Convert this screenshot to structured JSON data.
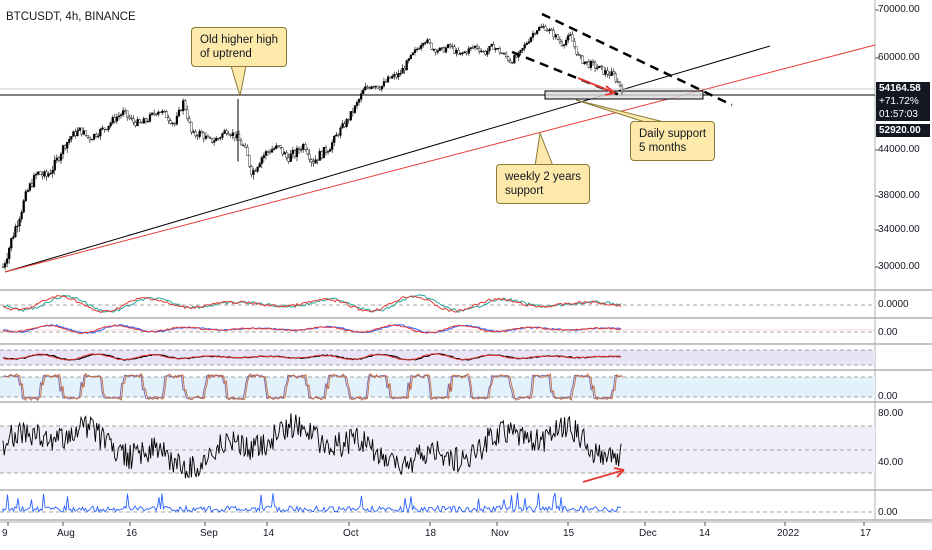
{
  "header": {
    "title": "BTCUSDT, 4h, BINANCE"
  },
  "notes": {
    "old_high": "Old higher high\nof uptrend",
    "weekly": "weekly 2 years\nsupport",
    "daily": "Daily support\n5 months"
  },
  "price_axis": {
    "ticks": [
      "70000.00",
      "60000.00",
      "44000.00",
      "38000.00",
      "34000.00",
      "30000.00"
    ],
    "last_price": "54164.58",
    "change": "+71.72%",
    "countdown": "01:57:03",
    "support_price": "52920.00"
  },
  "indicator_axis": {
    "ind1": "0.0000",
    "ind2": "0.00",
    "ind4": "0.00",
    "ind5_top": "80.00",
    "ind5_mid": "40.00",
    "ind6": "0.00"
  },
  "time_axis": [
    "9",
    "Aug",
    "16",
    "Sep",
    "14",
    "Oct",
    "18",
    "Nov",
    "15",
    "Dec",
    "14",
    "2022",
    "17"
  ],
  "colors": {
    "up": "#26a69a",
    "down": "#000000",
    "support_box": "#d9d9d9",
    "trend_black": "#000000",
    "trend_red": "#e53935",
    "note_bg": "#fde9a9",
    "ind_blue": "#2962ff",
    "ind_red": "#e53935"
  },
  "chart_data": {
    "type": "line",
    "series": [
      {
        "values": [
          30000,
          33000,
          36000,
          39000,
          41000,
          40500,
          42000,
          44500,
          46500,
          47500,
          46000,
          47000,
          48000,
          49500,
          50500,
          49000,
          48500,
          49500,
          51000,
          50000,
          48500,
          52500,
          46500,
          47000,
          45500,
          46000,
          47500,
          46500,
          44500,
          41000,
          43000,
          44000,
          44500,
          43000,
          43500,
          45000,
          42500,
          43500,
          44500,
          47000,
          49000,
          51500,
          54500,
          55500,
          55000,
          56500,
          57000,
          59000,
          61500,
          64000,
          62000,
          61500,
          62500,
          60500,
          61500,
          62500,
          61000,
          62500,
          61000,
          59500,
          60500,
          63500,
          66000,
          66500,
          65000,
          63000,
          64500,
          60000,
          59000,
          58500,
          57500,
          57000,
          54800
        ]
      }
    ],
    "ylim": [
      29000,
      71000
    ],
    "xticks": [
      "9",
      "Aug",
      "16",
      "Sep",
      "14",
      "Oct",
      "18",
      "Nov",
      "15",
      "Dec",
      "14",
      "2022",
      "17"
    ],
    "yticks": [
      70000,
      60000,
      44000,
      38000,
      34000,
      30000
    ]
  }
}
